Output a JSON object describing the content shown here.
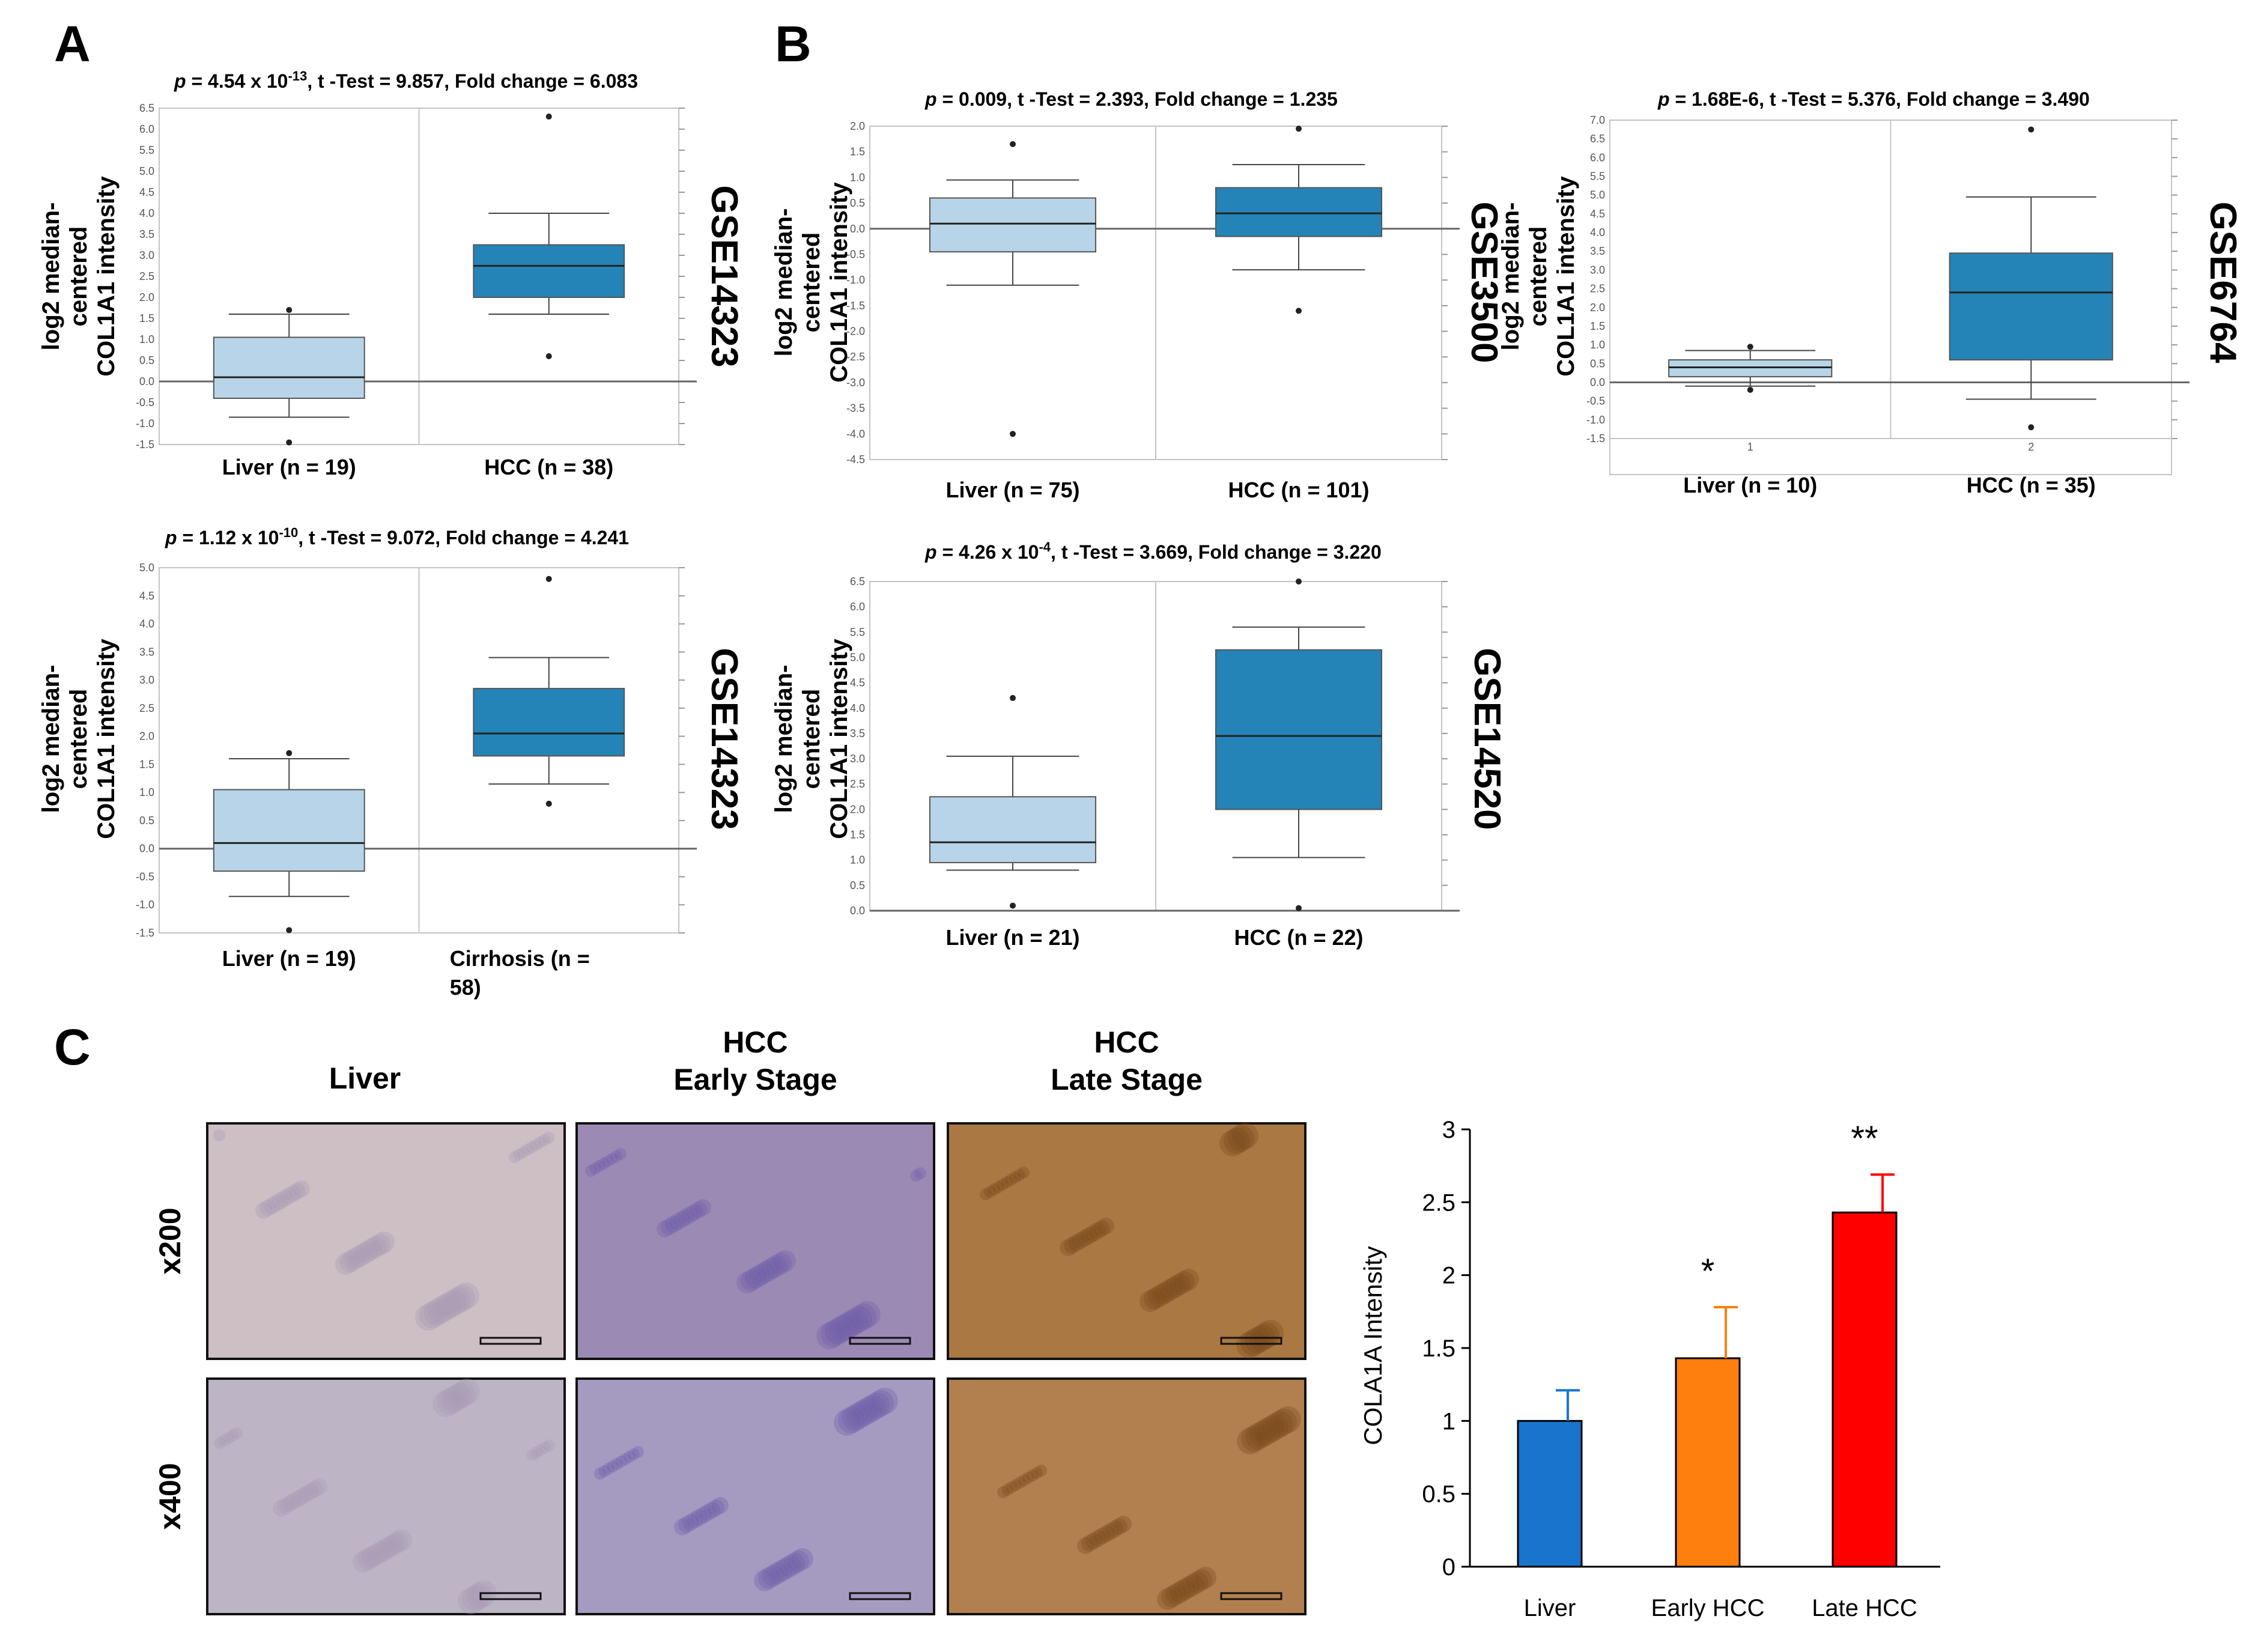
{
  "panels": {
    "a": {
      "label": "A"
    },
    "b": {
      "label": "B"
    },
    "c": {
      "label": "C"
    }
  },
  "chart_data": [
    {
      "type": "box",
      "id": "A1",
      "title_parts": {
        "p": "p",
        "pre": " = 4.54 x 10",
        "exp": "-13",
        "post": ", t -Test = 9.857, Fold change = 6.083"
      },
      "ylabel": [
        "log2 median-",
        "centered",
        "COL1A1 intensity"
      ],
      "dataset": "GSE14323",
      "ylim": [
        -1.5,
        6.5
      ],
      "tick_labels": [
        "-1.5",
        "-1.0",
        "-0.5",
        "0.0",
        "0.5",
        "1.0",
        "1.5",
        "2.0",
        "2.5",
        "3.0",
        "3.5",
        "4.0",
        "4.5",
        "5.0",
        "5.5",
        "6.0",
        "6.5"
      ],
      "groups": [
        {
          "label": "Liver (n = 19)",
          "min": -0.85,
          "q1": -0.4,
          "median": 0.1,
          "q3": 1.05,
          "max": 1.6,
          "outliers": [
            1.7,
            -1.45
          ],
          "color": "#b8d4e8"
        },
        {
          "label": "HCC (n = 38)",
          "min": 1.6,
          "q1": 2.0,
          "median": 2.75,
          "q3": 3.25,
          "max": 4.0,
          "outliers": [
            6.3,
            0.6
          ],
          "color": "#2484b8"
        }
      ]
    },
    {
      "type": "box",
      "id": "A2",
      "title_parts": {
        "p": "p",
        "pre": " = 1.12 x 10",
        "exp": "-10",
        "post": ", t -Test = 9.072, Fold change = 4.241"
      },
      "ylabel": [
        "log2 median-",
        "centered",
        "COL1A1 intensity"
      ],
      "dataset": "GSE14323",
      "ylim": [
        -1.5,
        5.0
      ],
      "tick_labels": [
        "-1.5",
        "-1.0",
        "-0.5",
        "0.0",
        "0.5",
        "1.0",
        "1.5",
        "2.0",
        "2.5",
        "3.0",
        "3.5",
        "4.0",
        "4.5",
        "5.0"
      ],
      "groups": [
        {
          "label": "Liver (n = 19)",
          "min": -0.85,
          "q1": -0.4,
          "median": 0.1,
          "q3": 1.05,
          "max": 1.6,
          "outliers": [
            1.7,
            -1.45
          ],
          "color": "#b8d4e8"
        },
        {
          "label": "Cirrhosis (n = 58)",
          "min": 1.15,
          "q1": 1.65,
          "median": 2.05,
          "q3": 2.85,
          "max": 3.4,
          "outliers": [
            4.8,
            0.8
          ],
          "color": "#2484b8"
        }
      ]
    },
    {
      "type": "box",
      "id": "B1",
      "title_parts": {
        "p": "p",
        "pre": " = 0.009, t -Test = 2.393, Fold change = 1.235",
        "exp": "",
        "post": ""
      },
      "ylabel": [
        "log2 median-",
        "centered",
        "COL1A1 intensity"
      ],
      "dataset": "GSE3500",
      "ylim": [
        -4.5,
        2.0
      ],
      "tick_labels": [
        "-4.5",
        "-4.0",
        "-3.5",
        "-3.0",
        "-2.5",
        "-2.0",
        "-1.5",
        "-1.0",
        "-0.5",
        "0.0",
        "0.5",
        "1.0",
        "1.5",
        "2.0"
      ],
      "groups": [
        {
          "label": "Liver (n = 75)",
          "min": -1.1,
          "q1": -0.45,
          "median": 0.1,
          "q3": 0.6,
          "max": 0.95,
          "outliers": [
            1.65,
            -4.0
          ],
          "color": "#b8d4e8"
        },
        {
          "label": "HCC (n = 101)",
          "min": -0.8,
          "q1": -0.15,
          "median": 0.3,
          "q3": 0.8,
          "max": 1.25,
          "outliers": [
            1.95,
            -1.6
          ],
          "color": "#2484b8"
        }
      ]
    },
    {
      "type": "box",
      "id": "B2",
      "title_parts": {
        "p": "p",
        "pre": " = 1.68E-6, t -Test = 5.376, Fold change = 3.490",
        "exp": "",
        "post": ""
      },
      "ylabel": [
        "log2 median-",
        "centered",
        "COL1A1 intensity"
      ],
      "dataset": "GSE6764",
      "ylim": [
        -1.5,
        7.0
      ],
      "tick_labels": [
        "-1.5",
        "-1.0",
        "-0.5",
        "0.0",
        "0.5",
        "1.0",
        "1.5",
        "2.0",
        "2.5",
        "3.0",
        "3.5",
        "4.0",
        "4.5",
        "5.0",
        "5.5",
        "6.0",
        "6.5",
        "7.0"
      ],
      "x_ticks": [
        "1",
        "2"
      ],
      "groups": [
        {
          "label": "Liver (n = 10)",
          "min": -0.1,
          "q1": 0.15,
          "median": 0.4,
          "q3": 0.6,
          "max": 0.85,
          "outliers": [
            0.95,
            -0.2
          ],
          "color": "#b8d4e8"
        },
        {
          "label": "HCC (n = 35)",
          "min": -0.45,
          "q1": 0.6,
          "median": 2.4,
          "q3": 3.45,
          "max": 4.95,
          "outliers": [
            6.75,
            -1.2
          ],
          "color": "#2484b8"
        }
      ]
    },
    {
      "type": "box",
      "id": "B3",
      "title_parts": {
        "p": "p",
        "pre": " = 4.26 x 10",
        "exp": "-4",
        "post": ", t -Test = 3.669, Fold change = 3.220"
      },
      "ylabel": [
        "log2 median-",
        "centered",
        "COL1A1 intensity"
      ],
      "dataset": "GSE14520",
      "ylim": [
        0.0,
        6.5
      ],
      "tick_labels": [
        "0.0",
        "0.5",
        "1.0",
        "1.5",
        "2.0",
        "2.5",
        "3.0",
        "3.5",
        "4.0",
        "4.5",
        "5.0",
        "5.5",
        "6.0",
        "6.5"
      ],
      "groups": [
        {
          "label": "Liver (n = 21)",
          "min": 0.8,
          "q1": 0.95,
          "median": 1.35,
          "q3": 2.25,
          "max": 3.05,
          "outliers": [
            4.2,
            0.1
          ],
          "color": "#b8d4e8"
        },
        {
          "label": "HCC (n = 22)",
          "min": 1.05,
          "q1": 2.0,
          "median": 3.45,
          "q3": 5.15,
          "max": 5.6,
          "outliers": [
            6.5,
            0.05
          ],
          "color": "#2484b8"
        }
      ]
    },
    {
      "type": "bar",
      "id": "C-bar",
      "categories": [
        "Liver",
        "Early HCC",
        "Late HCC"
      ],
      "values": [
        1.0,
        1.43,
        2.43
      ],
      "errors": [
        0.21,
        0.35,
        0.26
      ],
      "colors": [
        "#1874cd",
        "#ff7f0e",
        "#ff0000"
      ],
      "significance": [
        "",
        "*",
        "**"
      ],
      "ylabel": "COLA1A Intensity",
      "ylim": [
        0,
        3
      ],
      "yticks": [
        "0",
        "0.5",
        "1",
        "1.5",
        "2",
        "2.5",
        "3"
      ]
    }
  ],
  "ihc": {
    "columns": [
      {
        "lines": [
          "Liver"
        ]
      },
      {
        "lines": [
          "HCC",
          "Early Stage"
        ]
      },
      {
        "lines": [
          "HCC",
          "Late Stage"
        ]
      }
    ],
    "rows": [
      "x200",
      "x400"
    ],
    "tile_colors": [
      [
        "#cdbfc3",
        "#9b8bb4",
        "#a97843"
      ],
      [
        "#bdb5c6",
        "#a59bc1",
        "#b2804f"
      ]
    ]
  }
}
